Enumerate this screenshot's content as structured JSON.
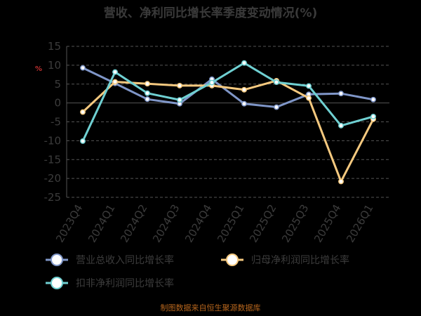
{
  "chart_data": {
    "type": "line",
    "title": "营收、净利同比增长率季度变动情况(%)",
    "unit_mark": "%",
    "categories": [
      "2023Q4",
      "2024Q1",
      "2024Q2",
      "2024Q3",
      "2024Q4",
      "2025Q1",
      "2025Q2",
      "2025Q3",
      "2025Q4",
      "2026Q1"
    ],
    "ylim": [
      -25,
      15
    ],
    "yticks": [
      -25,
      -20,
      -15,
      -10,
      -5,
      0,
      5,
      10,
      15
    ],
    "grid": true,
    "legend_position": "bottom",
    "series": [
      {
        "name": "营业总收入同比增长率",
        "color": "#7f96c8",
        "values": [
          9.3,
          5.2,
          1.0,
          -0.2,
          6.3,
          -0.2,
          -1.1,
          2.3,
          2.5,
          0.9
        ]
      },
      {
        "name": "归母净利润同比增长率",
        "color": "#f5c97f",
        "values": [
          -2.4,
          5.6,
          5.1,
          4.6,
          4.6,
          3.5,
          5.9,
          1.3,
          -20.8,
          -4.3
        ]
      },
      {
        "name": "扣非净利润同比增长率",
        "color": "#6fd0d2",
        "values": [
          -10.1,
          8.2,
          2.6,
          0.8,
          5.4,
          10.6,
          5.5,
          4.5,
          -6.0,
          -3.6
        ]
      }
    ]
  },
  "footer": "制图数据来自恒生聚源数据库"
}
